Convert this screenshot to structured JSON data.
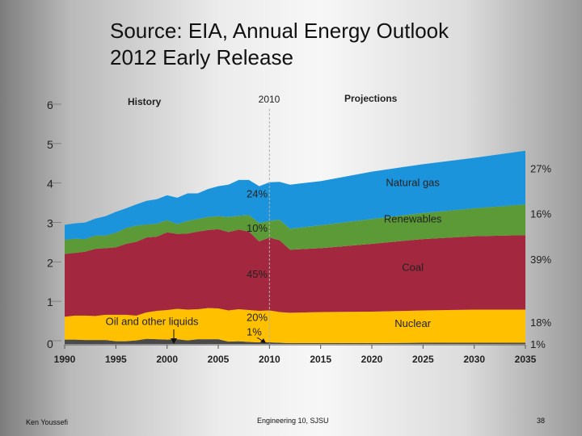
{
  "title_lines": [
    "Source:  EIA, Annual Energy Outlook",
    "2012 Early Release"
  ],
  "footer": {
    "author": "Ken Youssefi",
    "course": "Engineering 10, SJSU",
    "page": "38"
  },
  "colors": {
    "nuclear": "#ffc000",
    "coal": "#a3283f",
    "renewables": "#5b9a36",
    "natural_gas": "#1c94dc",
    "oil": "#4a4a4a"
  },
  "chart_data": {
    "type": "area",
    "stacked": true,
    "x": [
      1990,
      1991,
      1992,
      1993,
      1994,
      1995,
      1996,
      1997,
      1998,
      1999,
      2000,
      2001,
      2002,
      2003,
      2004,
      2005,
      2006,
      2007,
      2008,
      2009,
      2010,
      2011,
      2012,
      2015,
      2020,
      2025,
      2030,
      2035
    ],
    "series": [
      {
        "name": "Oil and other liquids",
        "color": "#4a4a4a",
        "values": [
          0.11,
          0.11,
          0.1,
          0.1,
          0.1,
          0.07,
          0.07,
          0.09,
          0.13,
          0.12,
          0.11,
          0.12,
          0.09,
          0.12,
          0.12,
          0.12,
          0.06,
          0.07,
          0.05,
          0.04,
          0.04,
          0.03,
          0.02,
          0.02,
          0.02,
          0.03,
          0.03,
          0.03
        ]
      },
      {
        "name": "Nuclear",
        "color": "#ffc000",
        "values": [
          0.58,
          0.61,
          0.62,
          0.61,
          0.64,
          0.67,
          0.67,
          0.63,
          0.67,
          0.72,
          0.75,
          0.77,
          0.78,
          0.76,
          0.79,
          0.78,
          0.79,
          0.81,
          0.81,
          0.8,
          0.81,
          0.78,
          0.77,
          0.79,
          0.8,
          0.82,
          0.84,
          0.84
        ]
      },
      {
        "name": "Coal",
        "color": "#a3283f",
        "values": [
          1.59,
          1.59,
          1.62,
          1.7,
          1.69,
          1.71,
          1.8,
          1.87,
          1.9,
          1.88,
          1.97,
          1.9,
          1.93,
          1.97,
          1.98,
          2.01,
          1.99,
          2.02,
          1.99,
          1.76,
          1.85,
          1.82,
          1.6,
          1.62,
          1.72,
          1.81,
          1.86,
          1.89
        ]
      },
      {
        "name": "Renewables",
        "color": "#5b9a36",
        "values": [
          0.36,
          0.36,
          0.32,
          0.34,
          0.32,
          0.37,
          0.4,
          0.41,
          0.33,
          0.33,
          0.31,
          0.25,
          0.32,
          0.32,
          0.33,
          0.33,
          0.38,
          0.35,
          0.42,
          0.47,
          0.42,
          0.52,
          0.53,
          0.58,
          0.63,
          0.66,
          0.71,
          0.78
        ]
      },
      {
        "name": "Natural gas",
        "color": "#1c94dc",
        "values": [
          0.38,
          0.39,
          0.42,
          0.43,
          0.49,
          0.53,
          0.5,
          0.54,
          0.6,
          0.62,
          0.63,
          0.67,
          0.7,
          0.65,
          0.71,
          0.76,
          0.82,
          0.91,
          0.89,
          0.93,
          0.98,
          0.96,
          1.12,
          1.12,
          1.2,
          1.24,
          1.28,
          1.36
        ]
      }
    ],
    "ylim": [
      0,
      6
    ],
    "yticks": [
      0,
      1,
      2,
      3,
      4,
      5,
      6
    ],
    "xlim": [
      1990,
      2035
    ],
    "xticks": [
      1990,
      1995,
      2000,
      2005,
      2010,
      2015,
      2020,
      2025,
      2030,
      2035
    ],
    "divider_year": 2010,
    "period_labels": {
      "history": "History",
      "projections": "Projections",
      "divider": "2010"
    },
    "annotations_2010": [
      {
        "text": "24%",
        "y": 3.72
      },
      {
        "text": "10%",
        "y": 2.85
      },
      {
        "text": "45%",
        "y": 1.68
      },
      {
        "text": "20%",
        "y": 0.58
      },
      {
        "text": "1%",
        "y": 0.22
      }
    ],
    "annotations_2035": [
      {
        "text": "27%",
        "y": 4.35
      },
      {
        "text": "16%",
        "y": 3.2
      },
      {
        "text": "39%",
        "y": 2.05
      },
      {
        "text": "18%",
        "y": 0.45
      },
      {
        "text": "1%",
        "y": -0.1
      }
    ],
    "series_labels": [
      {
        "text": "Natural gas",
        "x": 2024,
        "y": 4.0
      },
      {
        "text": "Renewables",
        "x": 2024,
        "y": 3.08
      },
      {
        "text": "Coal",
        "x": 2024,
        "y": 1.85
      },
      {
        "text": "Nuclear",
        "x": 2024,
        "y": 0.43
      },
      {
        "text": "Oil and other liquids",
        "x": 1994,
        "y": 0.48
      }
    ]
  }
}
